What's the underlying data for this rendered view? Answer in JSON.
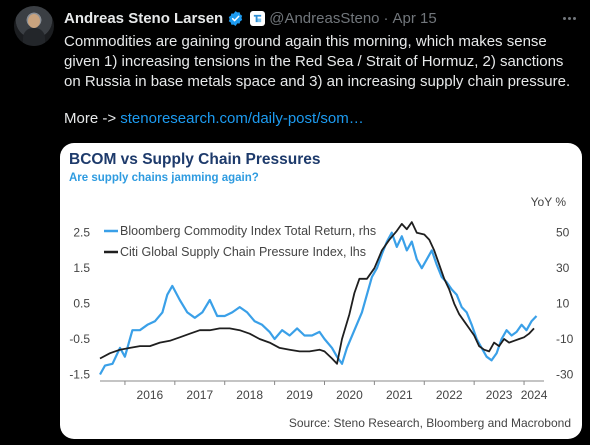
{
  "tweet": {
    "author_name": "Andreas Steno Larsen",
    "handle": "@AndreasSteno",
    "separator": "·",
    "date": "Apr 15",
    "text": "Commodities are gaining ground again this morning, which makes sense given 1) increasing tensions in the Red Sea / Strait of Hormuz, 2) sanctions on Russia in base metals space and 3) an increasing supply chain pressure.",
    "link_prefix": "More -> ",
    "link_text": "stenoresearch.com/daily-post/som…"
  },
  "icons": {
    "verified": "verified-badge-icon",
    "affiliate": "affiliate-badge-icon",
    "more": "more-options-icon"
  },
  "colors": {
    "bcom_line": "#3aa0e8",
    "supply_line": "#1f1f1f",
    "title": "#1d3a6b",
    "subtitle": "#2e9be0",
    "link": "#1d9bf0"
  },
  "chart_data": {
    "type": "line",
    "title": "BCOM vs Supply Chain Pressures",
    "subtitle": "Are supply chains jamming again?",
    "right_axis_label": "YoY %",
    "source": "Source: Steno Research, Bloomberg and Macrobond",
    "x_ticks": [
      "2016",
      "2017",
      "2018",
      "2019",
      "2020",
      "2021",
      "2022",
      "2023",
      "2024"
    ],
    "x_range": [
      2015.5,
      2024.4
    ],
    "left_axis": {
      "ticks": [
        "2.5",
        "1.5",
        "0.5",
        "-0.5",
        "-1.5"
      ],
      "values": [
        2.5,
        1.5,
        0.5,
        -0.5,
        -1.5
      ],
      "ylim": [
        -1.6,
        3.0
      ]
    },
    "right_axis": {
      "ticks": [
        "50",
        "30",
        "10",
        "-10",
        "-30"
      ],
      "values": [
        50,
        30,
        10,
        -10,
        -30
      ],
      "ylim": [
        -32,
        60
      ]
    },
    "legend_position": "top-left",
    "series": [
      {
        "name": "Bloomberg Commodity Index Total Return, rhs",
        "axis": "right",
        "points": [
          [
            2015.5,
            -30
          ],
          [
            2015.6,
            -25
          ],
          [
            2015.75,
            -24
          ],
          [
            2015.9,
            -15
          ],
          [
            2016.0,
            -20
          ],
          [
            2016.15,
            -5
          ],
          [
            2016.3,
            -5
          ],
          [
            2016.45,
            -2
          ],
          [
            2016.6,
            0
          ],
          [
            2016.75,
            5
          ],
          [
            2016.85,
            15
          ],
          [
            2016.95,
            20
          ],
          [
            2017.1,
            12
          ],
          [
            2017.25,
            5
          ],
          [
            2017.4,
            2
          ],
          [
            2017.55,
            5
          ],
          [
            2017.7,
            12
          ],
          [
            2017.85,
            3
          ],
          [
            2018.0,
            3
          ],
          [
            2018.15,
            5
          ],
          [
            2018.3,
            8
          ],
          [
            2018.45,
            5
          ],
          [
            2018.6,
            0
          ],
          [
            2018.75,
            -2
          ],
          [
            2018.9,
            -6
          ],
          [
            2019.0,
            -10
          ],
          [
            2019.15,
            -5
          ],
          [
            2019.3,
            -8
          ],
          [
            2019.45,
            -4
          ],
          [
            2019.6,
            -8
          ],
          [
            2019.75,
            -8
          ],
          [
            2019.9,
            -6
          ],
          [
            2020.0,
            -10
          ],
          [
            2020.15,
            -15
          ],
          [
            2020.25,
            -20
          ],
          [
            2020.35,
            -24
          ],
          [
            2020.45,
            -15
          ],
          [
            2020.6,
            -5
          ],
          [
            2020.75,
            5
          ],
          [
            2020.85,
            15
          ],
          [
            2020.95,
            25
          ],
          [
            2021.05,
            30
          ],
          [
            2021.15,
            38
          ],
          [
            2021.25,
            45
          ],
          [
            2021.35,
            50
          ],
          [
            2021.45,
            42
          ],
          [
            2021.55,
            48
          ],
          [
            2021.65,
            40
          ],
          [
            2021.75,
            45
          ],
          [
            2021.85,
            35
          ],
          [
            2021.95,
            30
          ],
          [
            2022.05,
            35
          ],
          [
            2022.15,
            40
          ],
          [
            2022.25,
            32
          ],
          [
            2022.35,
            25
          ],
          [
            2022.45,
            22
          ],
          [
            2022.55,
            18
          ],
          [
            2022.65,
            15
          ],
          [
            2022.75,
            8
          ],
          [
            2022.85,
            5
          ],
          [
            2022.95,
            -2
          ],
          [
            2023.05,
            -10
          ],
          [
            2023.15,
            -15
          ],
          [
            2023.25,
            -20
          ],
          [
            2023.35,
            -22
          ],
          [
            2023.45,
            -18
          ],
          [
            2023.55,
            -10
          ],
          [
            2023.65,
            -5
          ],
          [
            2023.75,
            -8
          ],
          [
            2023.85,
            -6
          ],
          [
            2023.95,
            -2
          ],
          [
            2024.05,
            -5
          ],
          [
            2024.15,
            0
          ],
          [
            2024.25,
            3
          ]
        ]
      },
      {
        "name": "Citi Global Supply Chain Pressure Index, lhs",
        "axis": "left",
        "points": [
          [
            2015.5,
            -1.05
          ],
          [
            2015.7,
            -0.9
          ],
          [
            2015.9,
            -0.8
          ],
          [
            2016.1,
            -0.75
          ],
          [
            2016.3,
            -0.7
          ],
          [
            2016.5,
            -0.7
          ],
          [
            2016.7,
            -0.6
          ],
          [
            2016.9,
            -0.55
          ],
          [
            2017.1,
            -0.45
          ],
          [
            2017.3,
            -0.35
          ],
          [
            2017.5,
            -0.25
          ],
          [
            2017.7,
            -0.25
          ],
          [
            2017.9,
            -0.2
          ],
          [
            2018.1,
            -0.2
          ],
          [
            2018.3,
            -0.25
          ],
          [
            2018.5,
            -0.35
          ],
          [
            2018.7,
            -0.5
          ],
          [
            2018.9,
            -0.6
          ],
          [
            2019.1,
            -0.75
          ],
          [
            2019.3,
            -0.8
          ],
          [
            2019.5,
            -0.85
          ],
          [
            2019.7,
            -0.85
          ],
          [
            2019.9,
            -0.8
          ],
          [
            2020.0,
            -0.85
          ],
          [
            2020.15,
            -1.05
          ],
          [
            2020.25,
            -1.2
          ],
          [
            2020.35,
            -0.5
          ],
          [
            2020.5,
            0.2
          ],
          [
            2020.6,
            0.8
          ],
          [
            2020.7,
            1.2
          ],
          [
            2020.85,
            1.2
          ],
          [
            2021.0,
            1.5
          ],
          [
            2021.15,
            2.0
          ],
          [
            2021.3,
            2.3
          ],
          [
            2021.45,
            2.55
          ],
          [
            2021.55,
            2.75
          ],
          [
            2021.65,
            2.6
          ],
          [
            2021.75,
            2.8
          ],
          [
            2021.85,
            2.5
          ],
          [
            2022.0,
            2.45
          ],
          [
            2022.1,
            2.3
          ],
          [
            2022.2,
            2.0
          ],
          [
            2022.3,
            1.6
          ],
          [
            2022.4,
            1.2
          ],
          [
            2022.5,
            0.9
          ],
          [
            2022.6,
            0.5
          ],
          [
            2022.7,
            0.2
          ],
          [
            2022.8,
            0.0
          ],
          [
            2022.9,
            -0.2
          ],
          [
            2023.0,
            -0.4
          ],
          [
            2023.1,
            -0.7
          ],
          [
            2023.2,
            -0.8
          ],
          [
            2023.3,
            -0.85
          ],
          [
            2023.4,
            -0.6
          ],
          [
            2023.5,
            -0.7
          ],
          [
            2023.6,
            -0.5
          ],
          [
            2023.7,
            -0.6
          ],
          [
            2023.8,
            -0.55
          ],
          [
            2023.9,
            -0.5
          ],
          [
            2024.0,
            -0.45
          ],
          [
            2024.1,
            -0.35
          ],
          [
            2024.2,
            -0.2
          ]
        ]
      }
    ]
  }
}
